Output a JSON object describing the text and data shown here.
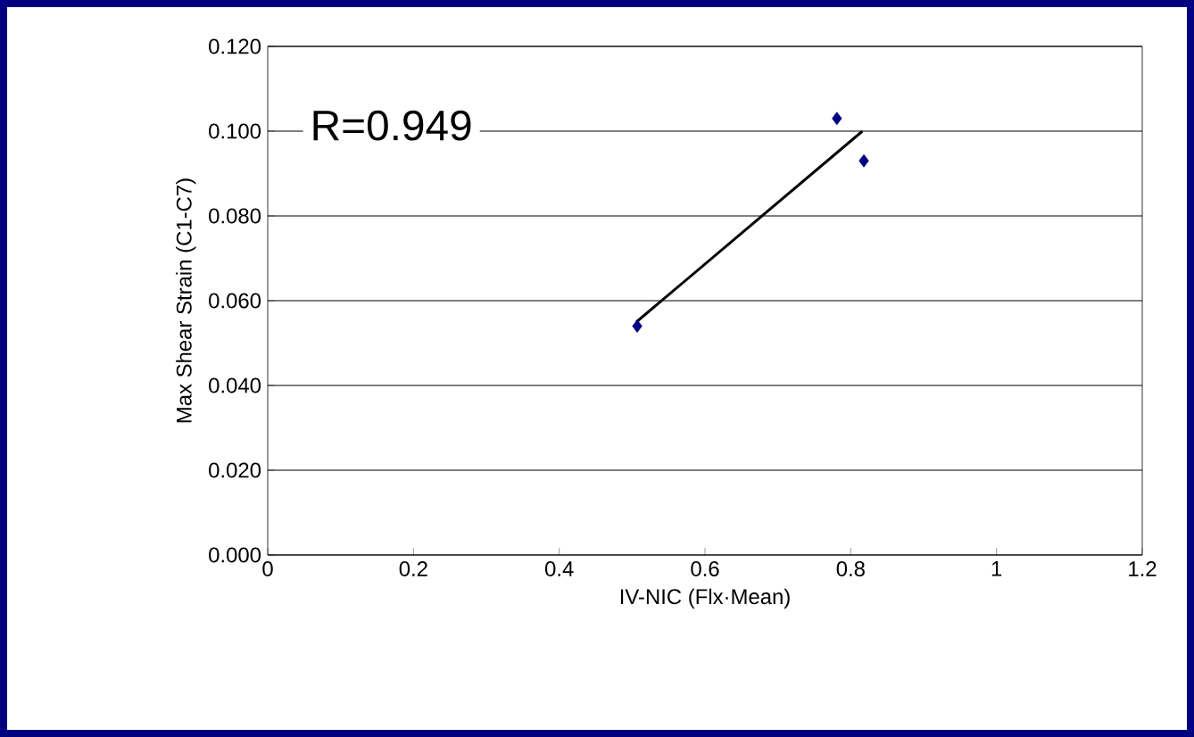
{
  "chart_data": {
    "type": "scatter",
    "xlabel": "IV-NIC (Flx·Mean)",
    "ylabel": "Max Shear Strain (C1-C7)",
    "annotations": [
      "R=0.949"
    ],
    "xlim": [
      0,
      1.2
    ],
    "xticks": [
      0,
      0.2,
      0.4,
      0.6,
      0.8,
      1,
      1.2
    ],
    "ylim": [
      0,
      0.12
    ],
    "yticks": [
      {
        "value": 0,
        "label": "0.000"
      },
      {
        "value": 0.02,
        "label": "0.020"
      },
      {
        "value": 0.04,
        "label": "0.040"
      },
      {
        "value": 0.06,
        "label": "0.060"
      },
      {
        "value": 0.08,
        "label": "0.080"
      },
      {
        "value": 0.1,
        "label": "0.100"
      },
      {
        "value": 0.12,
        "label": "0.120"
      }
    ],
    "grid": "y",
    "series": [
      {
        "x": [
          0.507,
          0.781,
          0.818
        ],
        "values": [
          0.054,
          0.103,
          0.093
        ],
        "color": "#000080",
        "marker": "diamond"
      },
      {
        "type": "line",
        "x": [
          0.506,
          0.816
        ],
        "values": [
          0.055,
          0.1
        ],
        "color": "#000000",
        "marker": "none",
        "line_style": "solid"
      }
    ]
  }
}
